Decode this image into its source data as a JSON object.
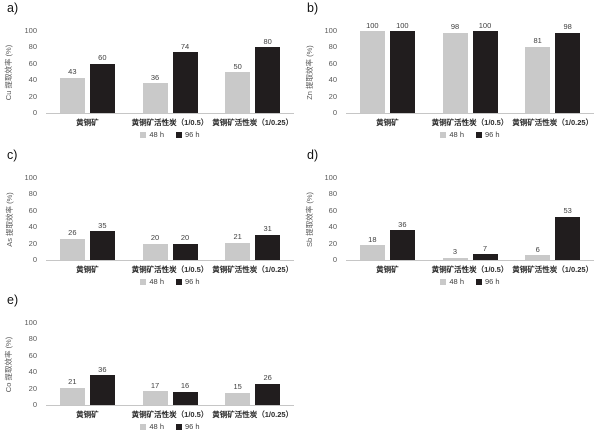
{
  "axis": {
    "y_ticks": [
      100,
      80,
      60,
      40,
      20,
      0
    ],
    "ylim": [
      0,
      100
    ],
    "grid": false
  },
  "legend": {
    "position": "bottom",
    "items": [
      "48 h",
      "96 h"
    ]
  },
  "colors": {
    "series_48h": "#c9c9c9",
    "series_96h": "#211d1e",
    "axis_line": "#c6c6c6"
  },
  "categories": [
    "黄铜矿",
    "黄铜矿活性炭（1/0.5）",
    "黄铜矿活性炭（1/0.25）"
  ],
  "chart_data": [
    {
      "panel": "a)",
      "type": "bar",
      "ylabel": "Cu 提取效率 (%)",
      "xlabel": "",
      "ylim": [
        0,
        100
      ],
      "grid": false,
      "legend_position": "bottom",
      "categories": [
        "黄铜矿",
        "黄铜矿活性炭（1/0.5）",
        "黄铜矿活性炭（1/0.25）"
      ],
      "series": [
        {
          "name": "48 h",
          "color": "#c9c9c9",
          "values": [
            43,
            36,
            50
          ]
        },
        {
          "name": "96 h",
          "color": "#211d1e",
          "values": [
            60,
            74,
            80
          ]
        }
      ]
    },
    {
      "panel": "b)",
      "type": "bar",
      "ylabel": "Zn 提取效率 (%)",
      "xlabel": "",
      "ylim": [
        0,
        100
      ],
      "grid": false,
      "legend_position": "bottom",
      "categories": [
        "黄铜矿",
        "黄铜矿活性炭（1/0.5）",
        "黄铜矿活性炭（1/0.25）"
      ],
      "series": [
        {
          "name": "48 h",
          "color": "#c9c9c9",
          "values": [
            100,
            98,
            81
          ]
        },
        {
          "name": "96 h",
          "color": "#211d1e",
          "values": [
            100,
            100,
            98
          ]
        }
      ]
    },
    {
      "panel": "c)",
      "type": "bar",
      "ylabel": "As 提取效率 (%)",
      "xlabel": "",
      "ylim": [
        0,
        100
      ],
      "grid": false,
      "legend_position": "bottom",
      "categories": [
        "黄铜矿",
        "黄铜矿活性炭（1/0.5）",
        "黄铜矿活性炭（1/0.25）"
      ],
      "series": [
        {
          "name": "48 h",
          "color": "#c9c9c9",
          "values": [
            26,
            20,
            21
          ]
        },
        {
          "name": "96 h",
          "color": "#211d1e",
          "values": [
            35,
            20,
            31
          ]
        }
      ]
    },
    {
      "panel": "d)",
      "type": "bar",
      "ylabel": "Sb 提取效率 (%)",
      "xlabel": "",
      "ylim": [
        0,
        100
      ],
      "grid": false,
      "legend_position": "bottom",
      "categories": [
        "黄铜矿",
        "黄铜矿活性炭（1/0.5）",
        "黄铜矿活性炭（1/0.25）"
      ],
      "series": [
        {
          "name": "48 h",
          "color": "#c9c9c9",
          "values": [
            18,
            3,
            6
          ]
        },
        {
          "name": "96 h",
          "color": "#211d1e",
          "values": [
            36,
            7,
            53
          ]
        }
      ]
    },
    {
      "panel": "e)",
      "type": "bar",
      "ylabel": "Co 提取效率 (%)",
      "xlabel": "",
      "ylim": [
        0,
        100
      ],
      "grid": false,
      "legend_position": "bottom",
      "categories": [
        "黄铜矿",
        "黄铜矿活性炭（1/0.5）",
        "黄铜矿活性炭（1/0.25）"
      ],
      "series": [
        {
          "name": "48 h",
          "color": "#c9c9c9",
          "values": [
            21,
            17,
            15
          ]
        },
        {
          "name": "96 h",
          "color": "#211d1e",
          "values": [
            36,
            16,
            26
          ]
        }
      ]
    }
  ]
}
